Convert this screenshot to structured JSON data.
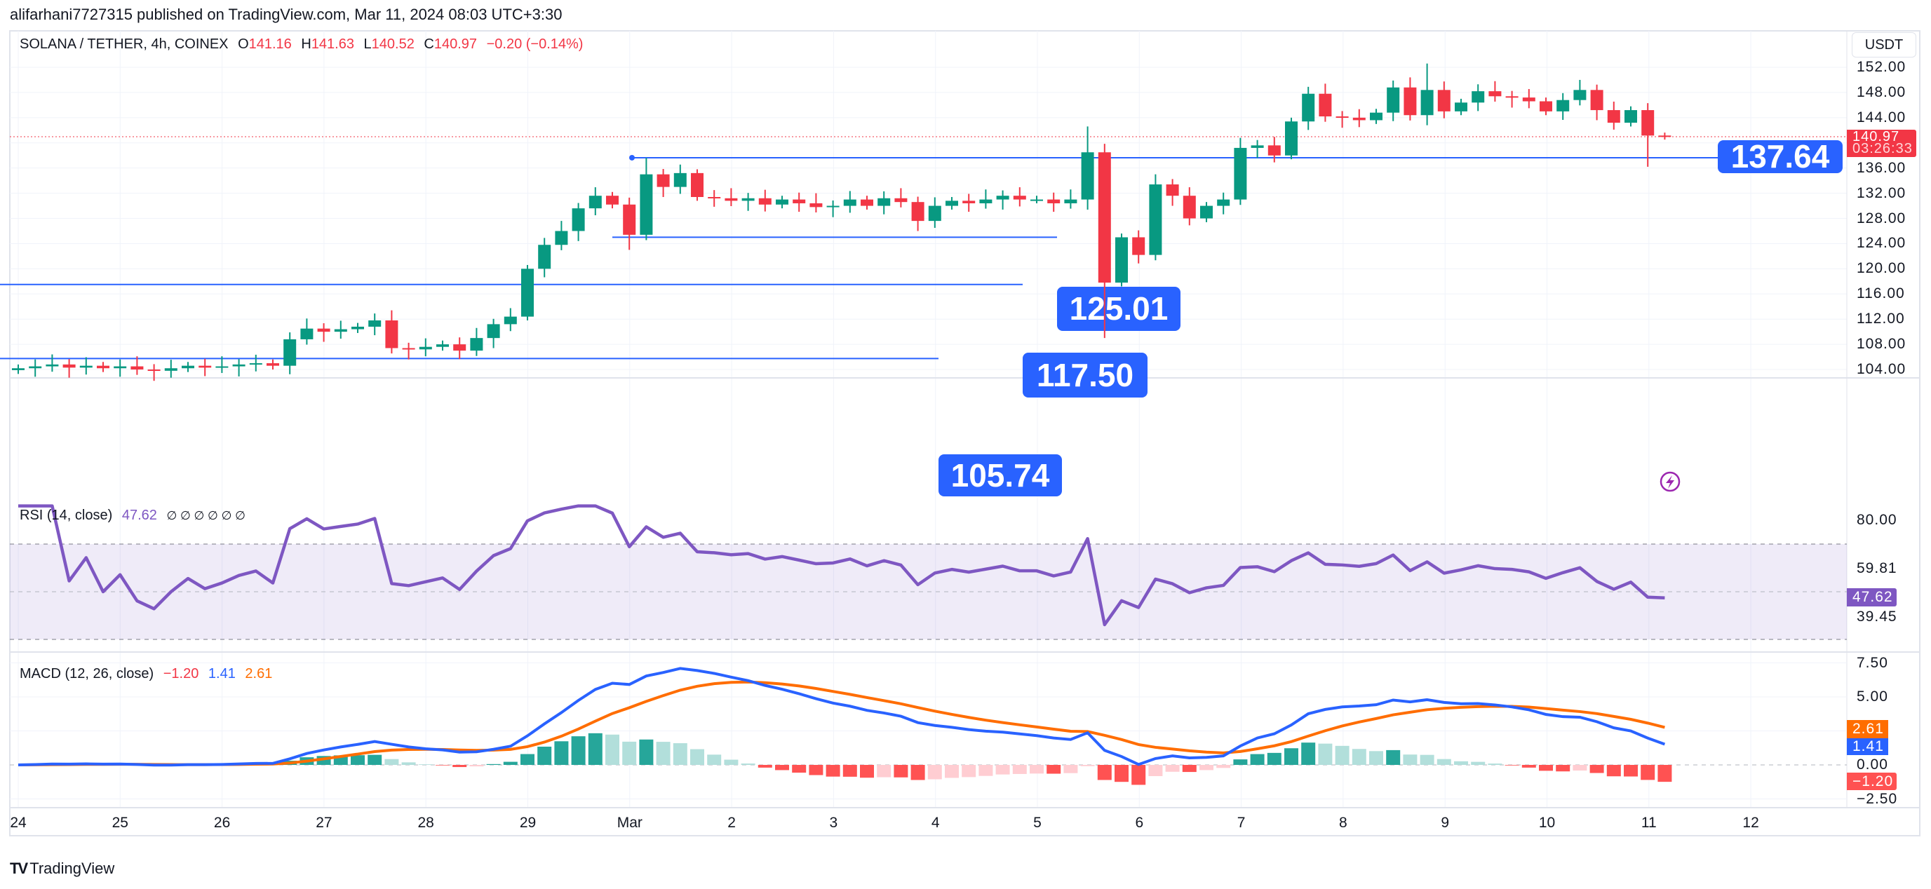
{
  "publish_line": "alifarhani7727315 published on TradingView.com, Mar 11, 2024 08:03 UTC+3:30",
  "legend": {
    "symbol": "SOLANA / TETHER, 4h, COINEX",
    "o_label": "O",
    "o": "141.16",
    "h_label": "H",
    "h": "141.63",
    "l_label": "L",
    "l": "140.52",
    "c_label": "C",
    "c": "140.97",
    "change": "−0.20 (−0.14%)"
  },
  "currency": "USDT",
  "price_axis": [
    "152.00",
    "148.00",
    "144.00",
    "136.00",
    "132.00",
    "128.00",
    "124.00",
    "120.00",
    "116.00",
    "112.00",
    "108.00",
    "104.00"
  ],
  "current_price": {
    "value": "140.97",
    "countdown": "03:26:33"
  },
  "levels": [
    {
      "label": "137.64"
    },
    {
      "label": "125.01"
    },
    {
      "label": "117.50"
    },
    {
      "label": "105.74"
    }
  ],
  "rsi": {
    "title": "RSI (14, close)",
    "value": "47.62",
    "na": "∅ ∅ ∅ ∅ ∅ ∅",
    "axis": [
      "80.00",
      "59.81",
      "39.45"
    ]
  },
  "macd": {
    "title": "MACD (12, 26, close)",
    "hist": "−1.20",
    "macd": "1.41",
    "signal": "2.61",
    "axis": [
      "7.50",
      "5.00",
      "0.00",
      "−2.50"
    ]
  },
  "time_axis": [
    "24",
    "25",
    "26",
    "27",
    "28",
    "29",
    "Mar",
    "2",
    "3",
    "4",
    "5",
    "6",
    "7",
    "8",
    "9",
    "10",
    "11",
    "12"
  ],
  "footer": "TradingView",
  "colors": {
    "up": "#089981",
    "down": "#f23645",
    "line": "#2962ff",
    "rsi": "#7e57c2",
    "signal": "#ff6d00"
  },
  "chart_data": {
    "type": "candlestick",
    "title": "SOLANA / TETHER, 4h, COINEX",
    "ylim": [
      102,
      154
    ],
    "closes": [
      104.2,
      104.5,
      104.8,
      104.3,
      104.6,
      104.2,
      104.5,
      104.0,
      103.8,
      104.2,
      104.6,
      104.3,
      104.5,
      104.8,
      105.0,
      104.6,
      108.8,
      110.5,
      110.0,
      110.4,
      110.8,
      111.8,
      107.4,
      107.2,
      107.6,
      108.0,
      107.0,
      109.0,
      111.2,
      112.4,
      120.0,
      123.8,
      126.0,
      129.6,
      131.6,
      130.2,
      125.4,
      135.0,
      133.0,
      135.2,
      131.4,
      131.2,
      130.8,
      131.2,
      130.2,
      131.0,
      130.4,
      129.8,
      130.0,
      131.0,
      130.0,
      131.2,
      130.6,
      127.6,
      130.0,
      130.8,
      130.4,
      131.0,
      131.6,
      131.0,
      131.0,
      130.4,
      131.0,
      138.5,
      117.8,
      125.0,
      122.2,
      133.4,
      131.6,
      128.0,
      130.0,
      131.0,
      139.2,
      139.6,
      138.0,
      143.4,
      147.8,
      144.2,
      144.0,
      143.6,
      144.8,
      148.8,
      144.4,
      148.4,
      145.0,
      146.4,
      148.2,
      147.4,
      147.2,
      146.6,
      145.0,
      146.8,
      148.4,
      145.2,
      143.2,
      145.2,
      141.16,
      140.97
    ],
    "wick_overrides": {
      "63": {
        "h": 142.6
      },
      "64": {
        "l": 109.0
      },
      "37": {
        "h": 137.6
      },
      "36": {
        "l": 123.0
      },
      "96": {
        "l": 136.2
      },
      "97": {
        "h": 141.63,
        "l": 140.52
      },
      "83": {
        "h": 152.6
      }
    },
    "levels": [
      137.64,
      125.01,
      117.5,
      105.74
    ],
    "rsi_range": [
      30,
      70
    ],
    "macd_ylim": [
      -3,
      8
    ]
  }
}
